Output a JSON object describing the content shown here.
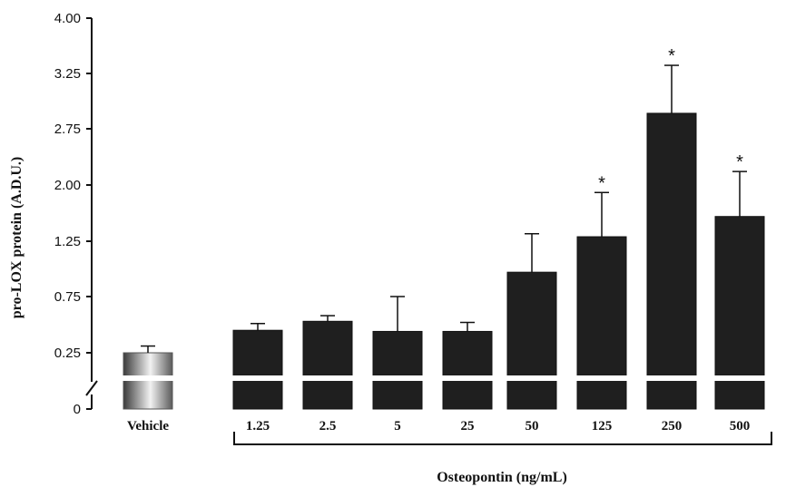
{
  "chart_data": {
    "type": "bar",
    "ylabel": "pro-LOX protein  (A.D.U.)",
    "group_label": "Osteopontin (ng/mL)",
    "y_ticks": [
      "4.00",
      "3.25",
      "2.75",
      "2.00",
      "1.25",
      "0.75",
      "0.25",
      "0"
    ],
    "ylim": [
      0,
      4.0
    ],
    "axis_break": true,
    "categories": [
      "Vehicle",
      "1.25",
      "2.5",
      "5",
      "25",
      "50",
      "125",
      "250",
      "500"
    ],
    "values": [
      0.25,
      0.45,
      0.53,
      0.44,
      0.44,
      0.97,
      1.31,
      2.89,
      1.58
    ],
    "errors": [
      0.06,
      0.06,
      0.05,
      0.31,
      0.08,
      0.38,
      0.59,
      0.47,
      0.6
    ],
    "significance": [
      "",
      "",
      "",
      "",
      "",
      "",
      "*",
      "*",
      "*"
    ],
    "colors": {
      "vehicle": "gradient-gray",
      "treated": "#1f1f1f"
    }
  }
}
